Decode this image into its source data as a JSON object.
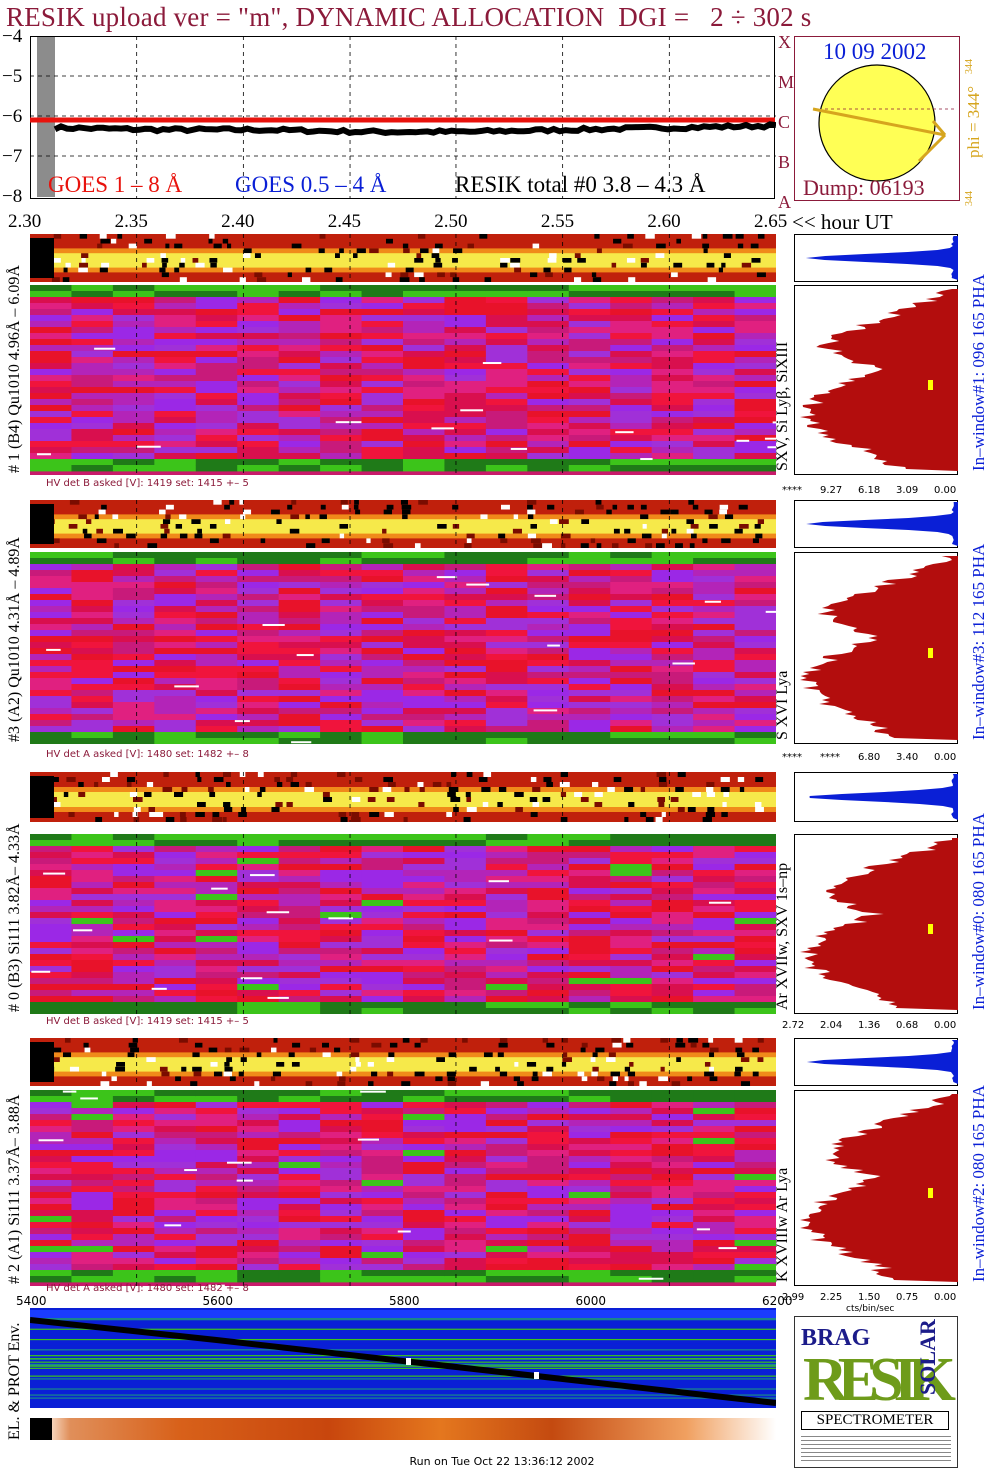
{
  "title": "RESIK upload ver = \"m\", DYNAMIC ALLOCATION  DGI =   2 ÷ 302 s",
  "goes": {
    "y_ticks": [
      "−4",
      "−5",
      "−6",
      "−7",
      "−8"
    ],
    "ylim": [
      -8,
      -4
    ],
    "flare_class": [
      "X",
      "M",
      "C",
      "B",
      "A"
    ],
    "legend": {
      "goes_long": "GOES 1 – 8 Å",
      "goes_short": "GOES 0.5 – 4 Å",
      "resik_total": "RESIK total #0  3.8 – 4.3 Å"
    },
    "colors": {
      "goes_long": "#e8120c",
      "goes_short": "#0a1fd6",
      "resik": "#000000"
    }
  },
  "sun": {
    "date": "10 09 2002",
    "dump": "Dump: 06193",
    "phi": "phi = 344°",
    "phi_sub": "344",
    "phi_small": "344"
  },
  "time_axis": {
    "ticks": [
      "2.30",
      "2.35",
      "2.40",
      "2.45",
      "2.50",
      "2.55",
      "2.60",
      "2.65"
    ],
    "unit_label": "<< hour UT"
  },
  "channels": [
    {
      "left_label": "# 1 (B4) Qu1010 4.96Å – 6.09Å",
      "line_label": "SXV, Si Lyβ, SiXIII",
      "window_label": "In–window#1:  096 165 PHA",
      "hv": "HV det B asked [V]:  1419 set:  1415 +–    5",
      "pha_ticks": [
        "****",
        "9.27",
        "6.18",
        "3.09",
        "0.00"
      ]
    },
    {
      "left_label": "#3 (A2) Qu1010  4.31Å – 4.89Å",
      "line_label": "S XVI Lya",
      "window_label": "In–window#3:  112 165 PHA",
      "hv": "HV det A asked [V]:  1480 set:  1482 +–    8",
      "pha_ticks": [
        "****",
        "****",
        "6.80",
        "3.40",
        "0.00"
      ]
    },
    {
      "left_label": "# 0 (B3) Si111  3.82Å– 4.33Å",
      "line_label": "Ar XVIIw,  SXV 1s–np",
      "window_label": "In–window#0:  080 165 PHA",
      "hv": "HV det B asked [V]:  1419 set:  1415 +–    5",
      "pha_ticks": [
        "2.72",
        "2.04",
        "1.36",
        "0.68",
        "0.00"
      ]
    },
    {
      "left_label": "# 2 (A1) Si111  3.37Å– 3.88Å",
      "line_label": "K XVIIIw  Ar Lya",
      "window_label": "In–window#2:  080 165 PHA",
      "hv": "HV det A asked [V]:  1480 set:  1482 +–    8",
      "pha_ticks": [
        "2.99",
        "2.25",
        "1.50",
        "0.75",
        "0.00"
      ]
    }
  ],
  "pha_axis_unit": "cts/bin/sec",
  "env": {
    "label": "EL. & PROT Env.",
    "x_ticks": [
      "5400",
      "5600",
      "5800",
      "6000",
      "6200"
    ]
  },
  "logo": {
    "letters": "RESIK",
    "words": [
      "BRAG",
      "SOLAR"
    ],
    "caption": "SPECTROMETER"
  },
  "footer": "Run on Tue Oct 22 13:36:12 2002",
  "chart_data": [
    {
      "type": "line",
      "title": "RESIK upload ver = \"m\", DYNAMIC ALLOCATION  DGI =   2 ÷ 302 s",
      "x": [
        2.3,
        2.35,
        2.4,
        2.45,
        2.5,
        2.55,
        2.6,
        2.65
      ],
      "xlabel": "hour UT",
      "ylim": [
        -8,
        -4
      ],
      "series": [
        {
          "name": "GOES 1 – 8 Å",
          "values": [
            -6.1,
            -6.1,
            -6.1,
            -6.1,
            -6.1,
            -6.1,
            -6.1,
            -6.1
          ]
        },
        {
          "name": "RESIK total #0  3.8 – 4.3 Å",
          "values": [
            -6.25,
            -6.3,
            -6.3,
            -6.35,
            -6.35,
            -6.3,
            -6.25,
            -6.2
          ]
        }
      ],
      "grid": true
    },
    {
      "type": "line",
      "title": "EL. & PROT Env.",
      "x": [
        5400,
        5600,
        5800,
        6000,
        6200
      ],
      "series": [
        {
          "values": [
            0.12,
            0.32,
            0.53,
            0.74,
            0.95
          ]
        }
      ]
    }
  ]
}
